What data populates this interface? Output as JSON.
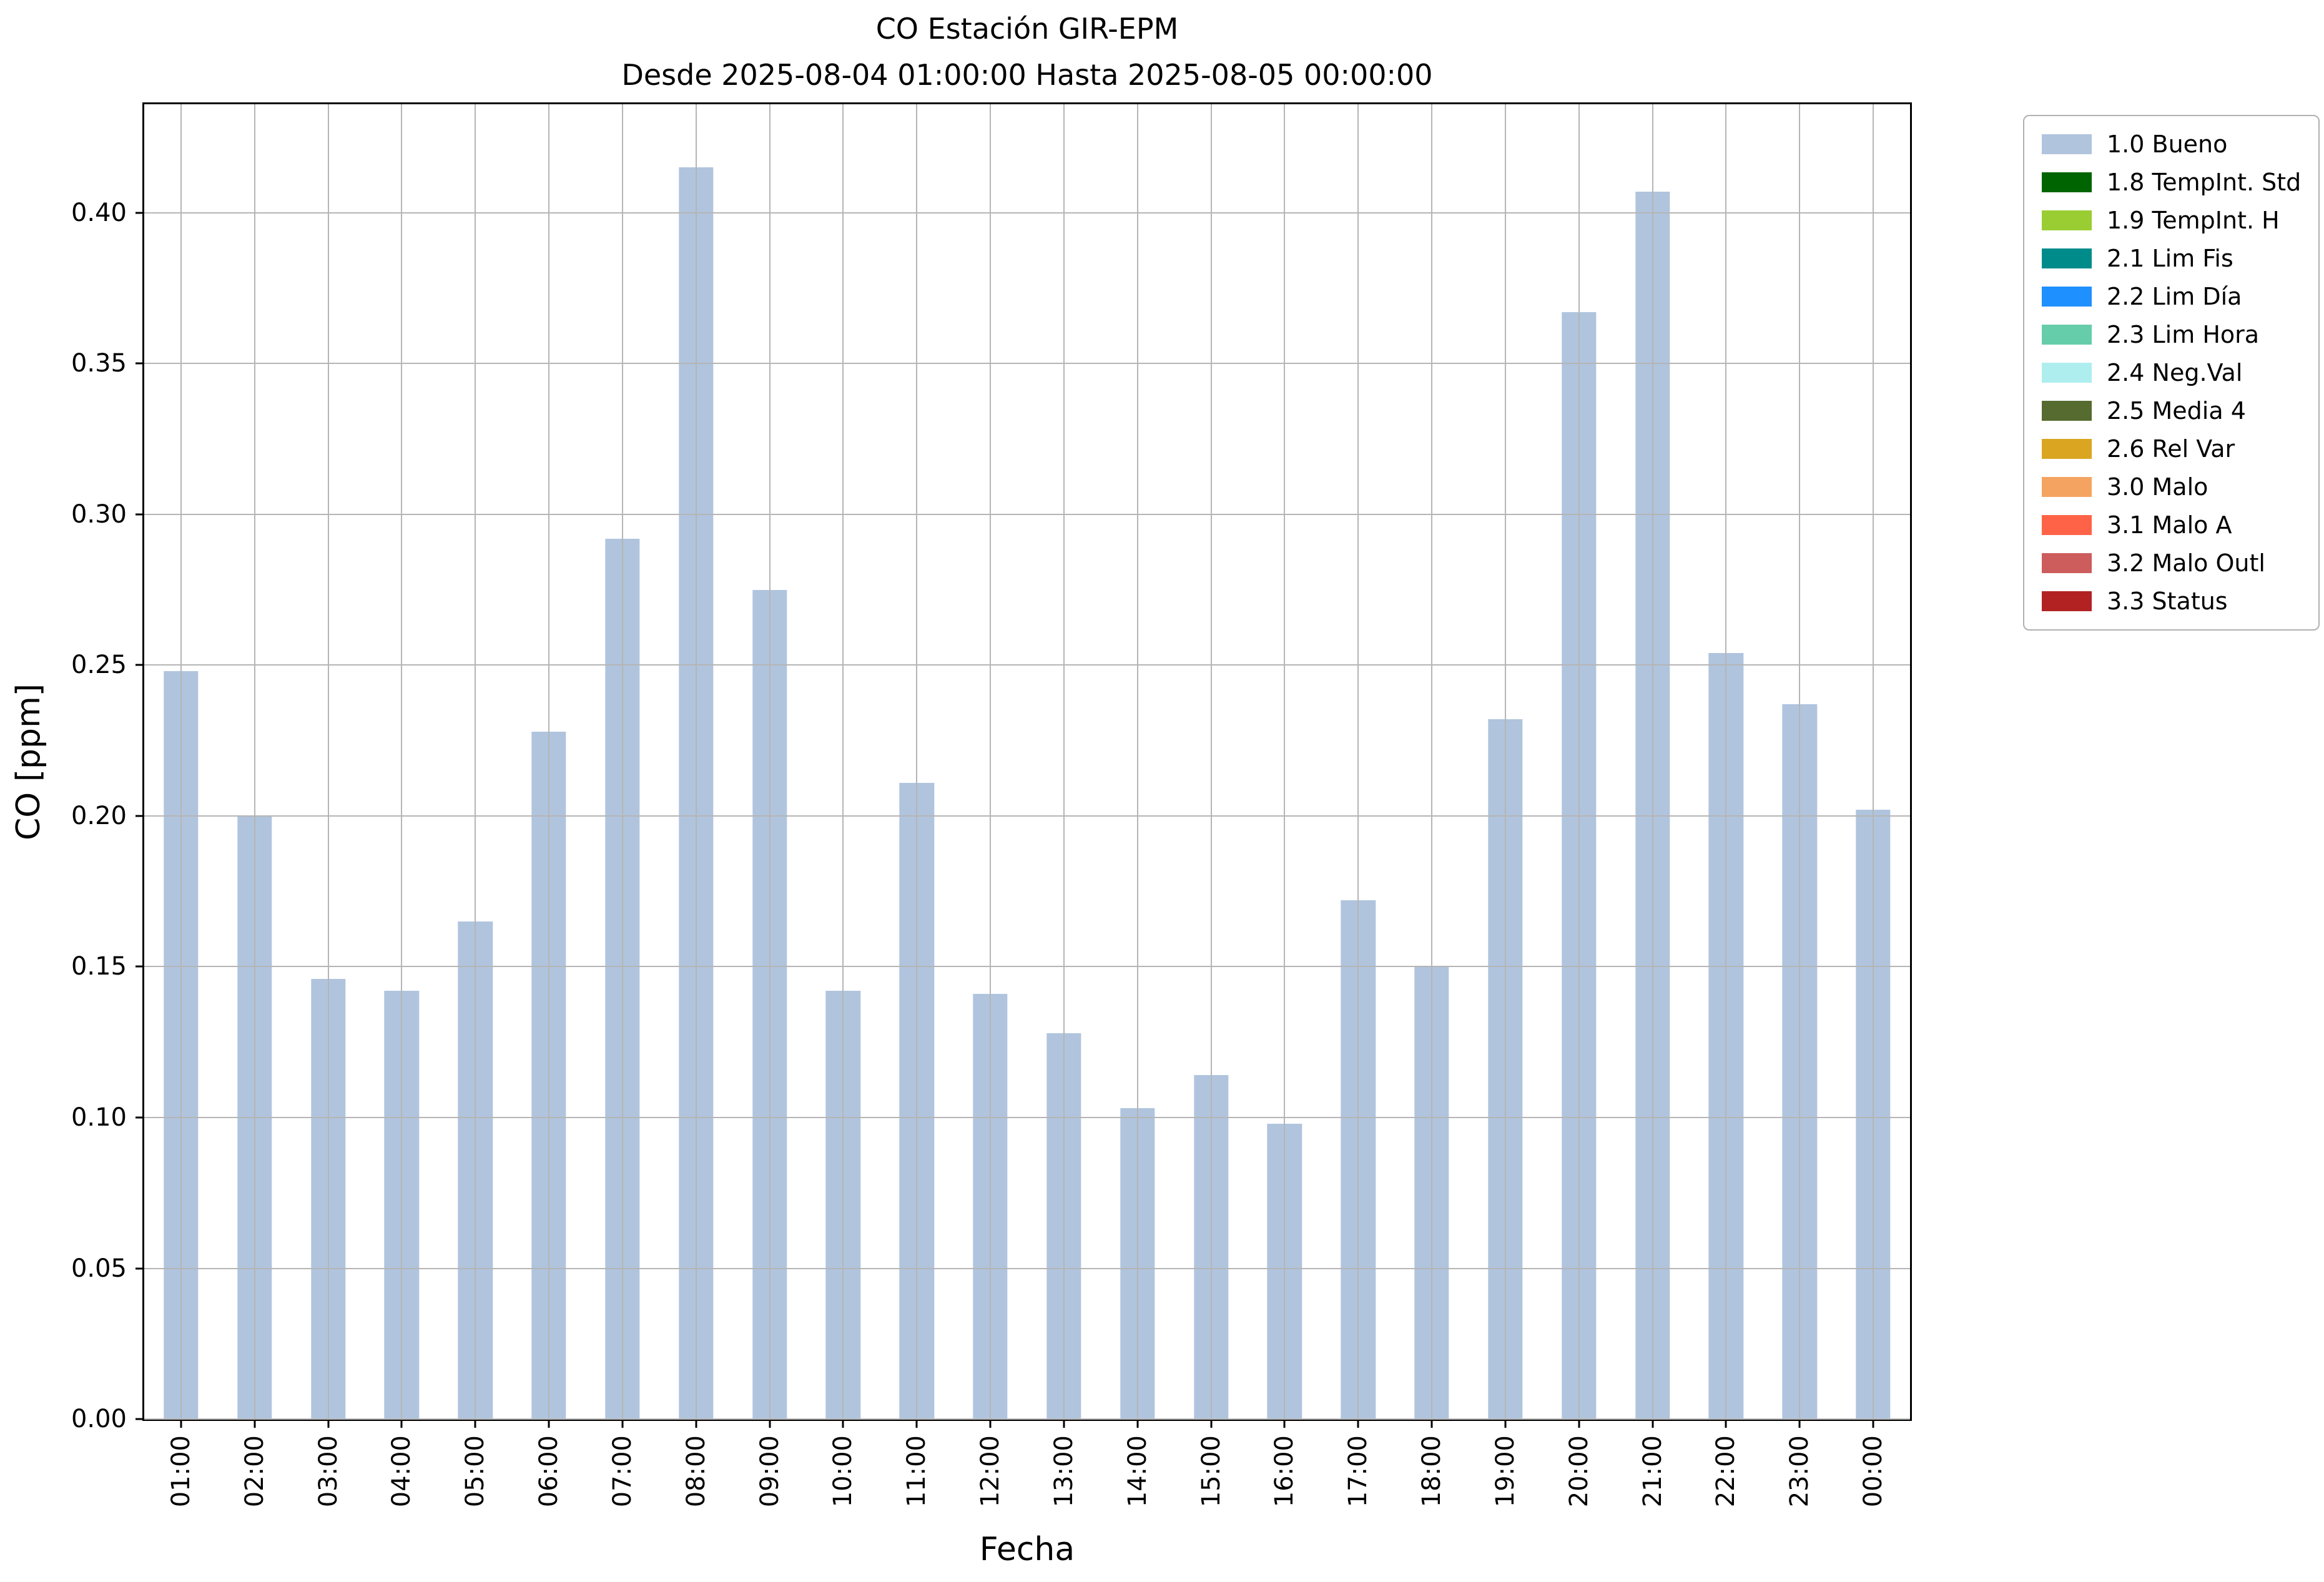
{
  "chart_data": {
    "type": "bar",
    "title_lines": [
      "CO Estación GIR-EPM",
      "Desde 2025-08-04 01:00:00 Hasta 2025-08-05 00:00:00"
    ],
    "title": "CO Estación GIR-EPM\nDesde 2025-08-04 01:00:00 Hasta 2025-08-05 00:00:00",
    "xlabel": "Fecha",
    "ylabel": "CO [ppm]",
    "ylim": [
      0,
      0.436
    ],
    "yticks": [
      0,
      0.05,
      0.1,
      0.15,
      0.2,
      0.25,
      0.3,
      0.35,
      0.4
    ],
    "ytick_labels": [
      "0.00",
      "0.05",
      "0.10",
      "0.15",
      "0.20",
      "0.25",
      "0.30",
      "0.35",
      "0.40"
    ],
    "grid": true,
    "grid_color": "#b5b5b5",
    "bar_color": "#b0c4de",
    "bar_width_fraction": 0.47,
    "categories": [
      "01:00",
      "02:00",
      "03:00",
      "04:00",
      "05:00",
      "06:00",
      "07:00",
      "08:00",
      "09:00",
      "10:00",
      "11:00",
      "12:00",
      "13:00",
      "14:00",
      "15:00",
      "16:00",
      "17:00",
      "18:00",
      "19:00",
      "20:00",
      "21:00",
      "22:00",
      "23:00",
      "00:00"
    ],
    "values": [
      0.248,
      0.2,
      0.146,
      0.142,
      0.165,
      0.228,
      0.292,
      0.415,
      0.275,
      0.142,
      0.211,
      0.141,
      0.128,
      0.103,
      0.114,
      0.098,
      0.172,
      0.15,
      0.232,
      0.367,
      0.407,
      0.254,
      0.237,
      0.202
    ],
    "legend": {
      "position": "outside upper right",
      "entries": [
        {
          "label": "1.0 Bueno",
          "color": "#b0c4de"
        },
        {
          "label": "1.8 TempInt. Std",
          "color": "#006400"
        },
        {
          "label": "1.9 TempInt. H",
          "color": "#9acd32"
        },
        {
          "label": "2.1 Lim Fis",
          "color": "#008b8b"
        },
        {
          "label": "2.2 Lim Día",
          "color": "#1e90ff"
        },
        {
          "label": "2.3 Lim Hora",
          "color": "#66cdaa"
        },
        {
          "label": "2.4 Neg.Val",
          "color": "#afeeee"
        },
        {
          "label": "2.5 Media 4",
          "color": "#556b2f"
        },
        {
          "label": "2.6 Rel Var",
          "color": "#daa520"
        },
        {
          "label": "3.0 Malo",
          "color": "#f4a460"
        },
        {
          "label": "3.1 Malo A",
          "color": "#ff6347"
        },
        {
          "label": "3.2 Malo Outl",
          "color": "#cd5c5c"
        },
        {
          "label": "3.3 Status",
          "color": "#b22222"
        }
      ]
    }
  }
}
